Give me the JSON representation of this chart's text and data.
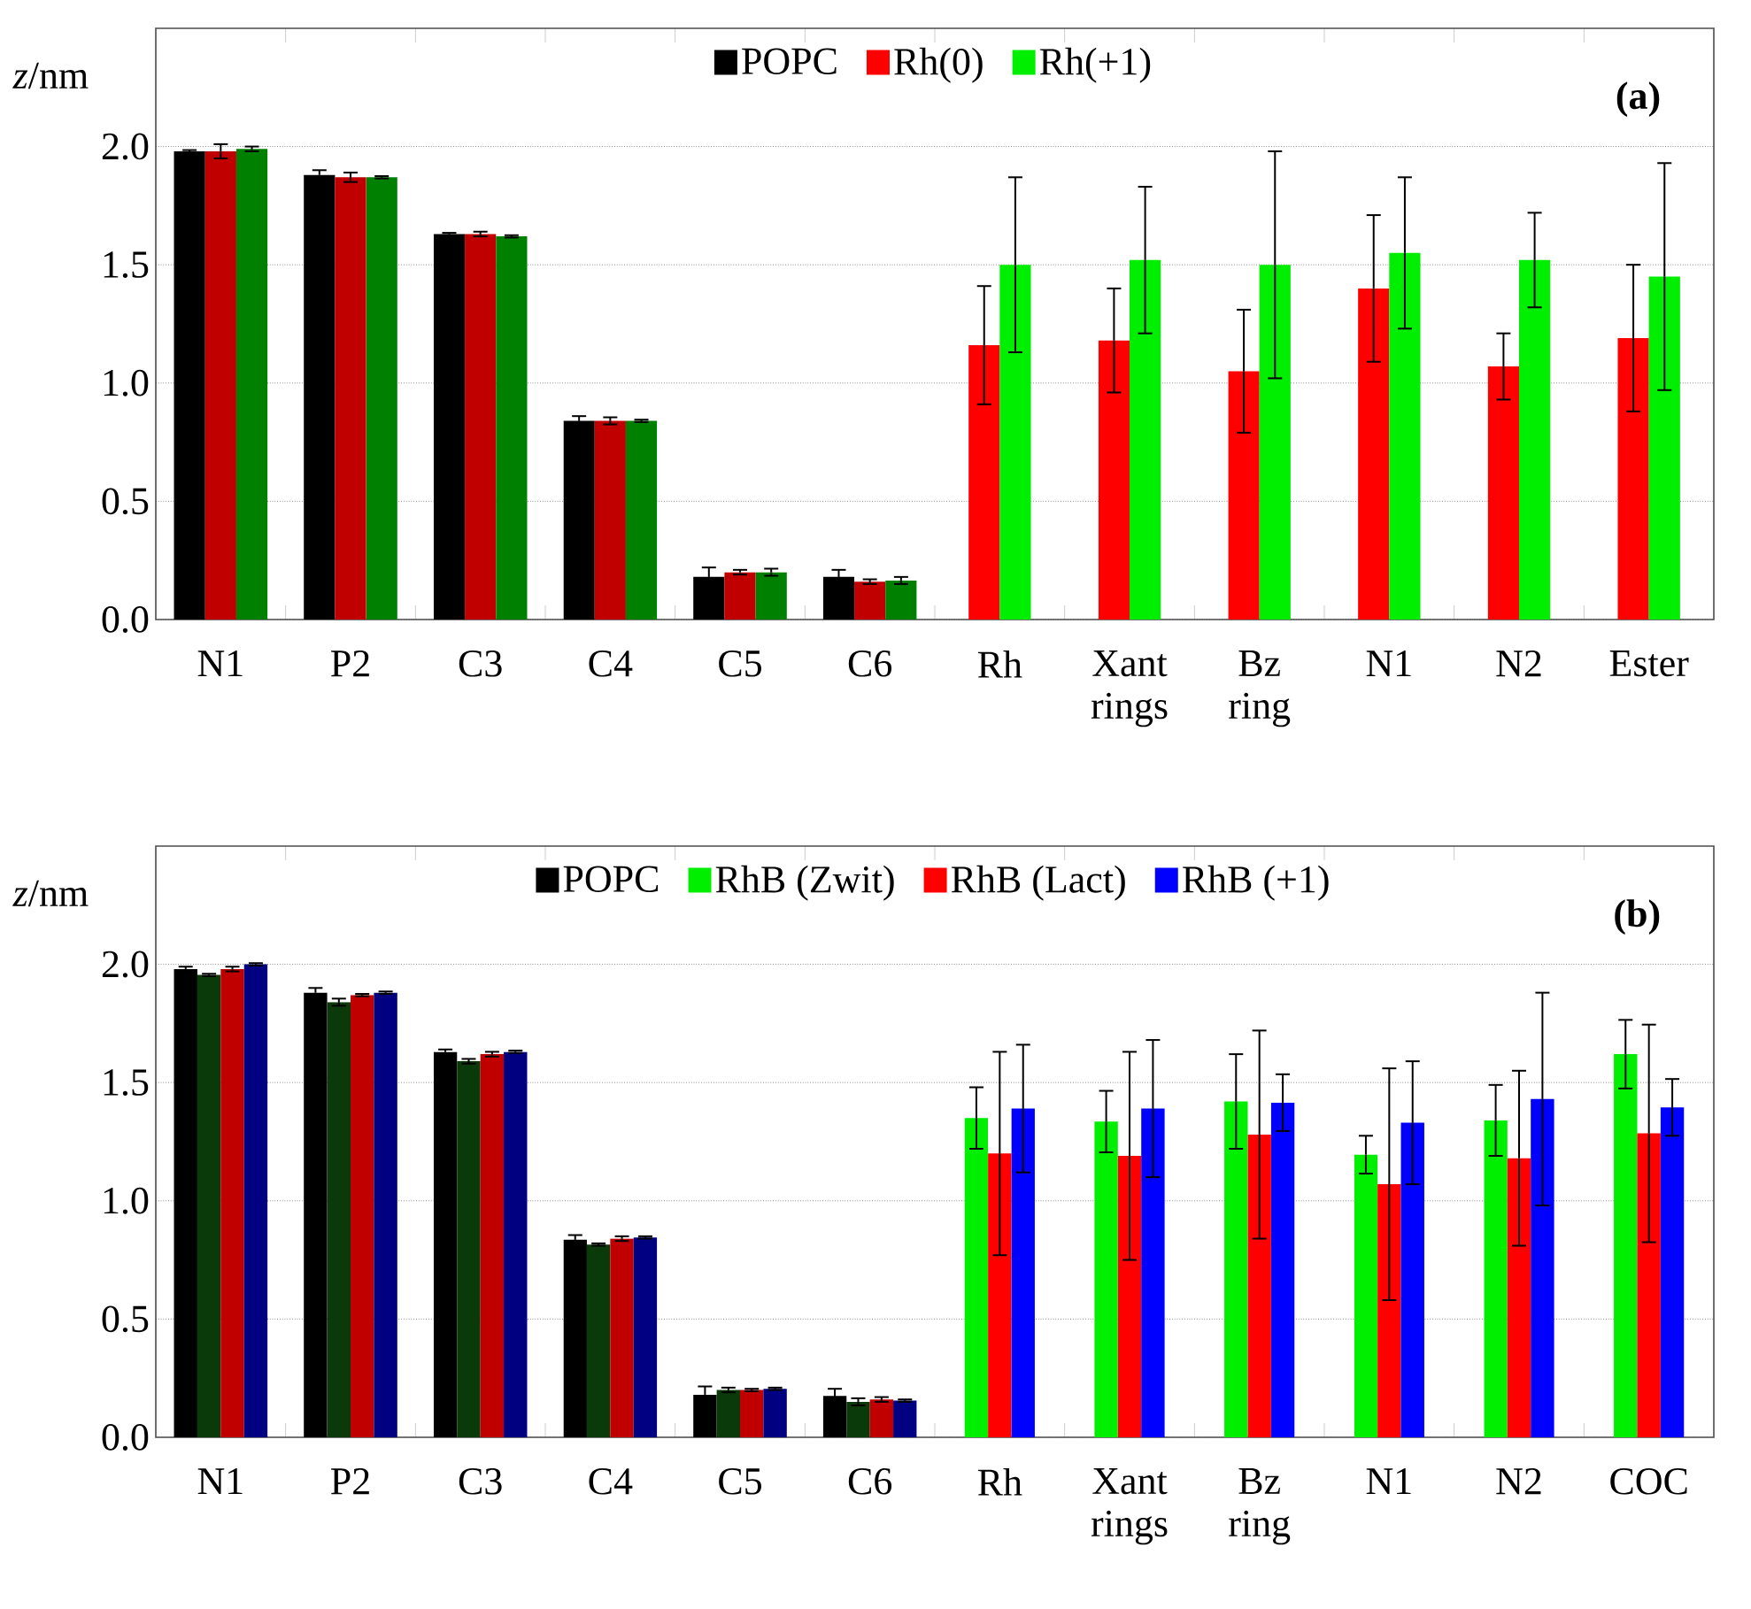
{
  "chart_data": [
    {
      "type": "bar",
      "ylabel": "*z*/nm",
      "annotations": [
        "(a)"
      ],
      "grid": "y",
      "legend": "top",
      "categories": [
        "N1",
        "P2",
        "C3",
        "C4",
        "C5",
        "C6",
        "Rh",
        "Xant rings",
        "Bz ring",
        "N1",
        "N2",
        "Ester"
      ],
      "ylim": [
        0,
        2.5
      ],
      "yticks": [
        {
          "value": 0,
          "label": "0.0"
        },
        {
          "value": 0.5,
          "label": "0.5"
        },
        {
          "value": 1,
          "label": "1.0"
        },
        {
          "value": 1.5,
          "label": "1.5"
        },
        {
          "value": 2,
          "label": "2.0"
        }
      ],
      "series": [
        {
          "name": "POPC",
          "color": "#000000",
          "values": [
            1.98,
            1.88,
            1.63,
            0.84,
            0.18,
            0.18,
            null,
            null,
            null,
            null,
            null,
            null
          ],
          "errors": [
            0.005,
            0.02,
            0.005,
            0.02,
            0.04,
            0.03,
            null,
            null,
            null,
            null,
            null,
            null
          ]
        },
        {
          "name": "Rh(0)",
          "color": "#ff0000",
          "colors": [
            "#c00000",
            "#c00000",
            "#c00000",
            "#c00000",
            "#c00000",
            "#c00000",
            "#ff0000",
            "#ff0000",
            "#ff0000",
            "#ff0000",
            "#ff0000",
            "#ff0000"
          ],
          "values": [
            1.98,
            1.87,
            1.63,
            0.84,
            0.2,
            0.16,
            1.16,
            1.18,
            1.05,
            1.4,
            1.07,
            1.19
          ],
          "errors": [
            0.03,
            0.02,
            0.01,
            0.015,
            0.01,
            0.01,
            0.25,
            0.22,
            0.26,
            0.31,
            0.14,
            0.31
          ]
        },
        {
          "name": "Rh(+1)",
          "color": "#00ee00",
          "colors": [
            "#008000",
            "#008000",
            "#008000",
            "#008000",
            "#008000",
            "#008000",
            "#00ee00",
            "#00ee00",
            "#00ee00",
            "#00ee00",
            "#00ee00",
            "#00ee00"
          ],
          "values": [
            1.99,
            1.87,
            1.62,
            0.84,
            0.2,
            0.165,
            1.5,
            1.52,
            1.5,
            1.55,
            1.52,
            1.45
          ],
          "errors": [
            0.01,
            0.005,
            0.005,
            0.005,
            0.015,
            0.015,
            0.37,
            0.31,
            0.48,
            0.32,
            0.2,
            0.48
          ]
        }
      ]
    },
    {
      "type": "bar",
      "ylabel": "*z*/nm",
      "annotations": [
        "(b)"
      ],
      "grid": "y",
      "legend": "top",
      "categories": [
        "N1",
        "P2",
        "C3",
        "C4",
        "C5",
        "C6",
        "Rh",
        "Xant rings",
        "Bz ring",
        "N1",
        "N2",
        "COC"
      ],
      "ylim": [
        0,
        2.5
      ],
      "yticks": [
        {
          "value": 0,
          "label": "0.0"
        },
        {
          "value": 0.5,
          "label": "0.5"
        },
        {
          "value": 1,
          "label": "1.0"
        },
        {
          "value": 1.5,
          "label": "1.5"
        },
        {
          "value": 2,
          "label": "2.0"
        }
      ],
      "series": [
        {
          "name": "POPC",
          "color": "#000000",
          "values": [
            1.98,
            1.88,
            1.63,
            0.835,
            0.18,
            0.175,
            null,
            null,
            null,
            null,
            null,
            null
          ],
          "errors": [
            0.01,
            0.02,
            0.01,
            0.02,
            0.035,
            0.03,
            null,
            null,
            null,
            null,
            null,
            null
          ]
        },
        {
          "name": "RhB (Zwit)",
          "color": "#00ee00",
          "colors": [
            "#0a3a0a",
            "#0a3a0a",
            "#0a3a0a",
            "#0a3a0a",
            "#0a3a0a",
            "#0a3a0a",
            "#00ee00",
            "#00ee00",
            "#00ee00",
            "#00ee00",
            "#00ee00",
            "#00ee00"
          ],
          "values": [
            1.955,
            1.84,
            1.59,
            0.815,
            0.2,
            0.15,
            1.35,
            1.335,
            1.42,
            1.195,
            1.34,
            1.62
          ],
          "errors": [
            0.005,
            0.015,
            0.01,
            0.005,
            0.01,
            0.015,
            0.13,
            0.13,
            0.2,
            0.08,
            0.15,
            0.145
          ]
        },
        {
          "name": "RhB (Lact)",
          "color": "#ff0000",
          "colors": [
            "#c00000",
            "#c00000",
            "#c00000",
            "#c00000",
            "#c00000",
            "#c00000",
            "#ff0000",
            "#ff0000",
            "#ff0000",
            "#ff0000",
            "#ff0000",
            "#ff0000"
          ],
          "values": [
            1.98,
            1.87,
            1.62,
            0.84,
            0.2,
            0.16,
            1.2,
            1.19,
            1.28,
            1.07,
            1.18,
            1.285
          ],
          "errors": [
            0.01,
            0.005,
            0.01,
            0.01,
            0.005,
            0.01,
            0.43,
            0.44,
            0.44,
            0.49,
            0.37,
            0.46
          ]
        },
        {
          "name": "RhB (+1)",
          "color": "#0000ff",
          "colors": [
            "#000080",
            "#000080",
            "#000080",
            "#000080",
            "#000080",
            "#000080",
            "#0000ff",
            "#0000ff",
            "#0000ff",
            "#0000ff",
            "#0000ff",
            "#0000ff"
          ],
          "values": [
            2.0,
            1.88,
            1.63,
            0.845,
            0.205,
            0.155,
            1.39,
            1.39,
            1.415,
            1.33,
            1.43,
            1.395
          ],
          "errors": [
            0.005,
            0.005,
            0.005,
            0.005,
            0.005,
            0.005,
            0.27,
            0.29,
            0.12,
            0.26,
            0.45,
            0.12
          ]
        }
      ]
    }
  ]
}
